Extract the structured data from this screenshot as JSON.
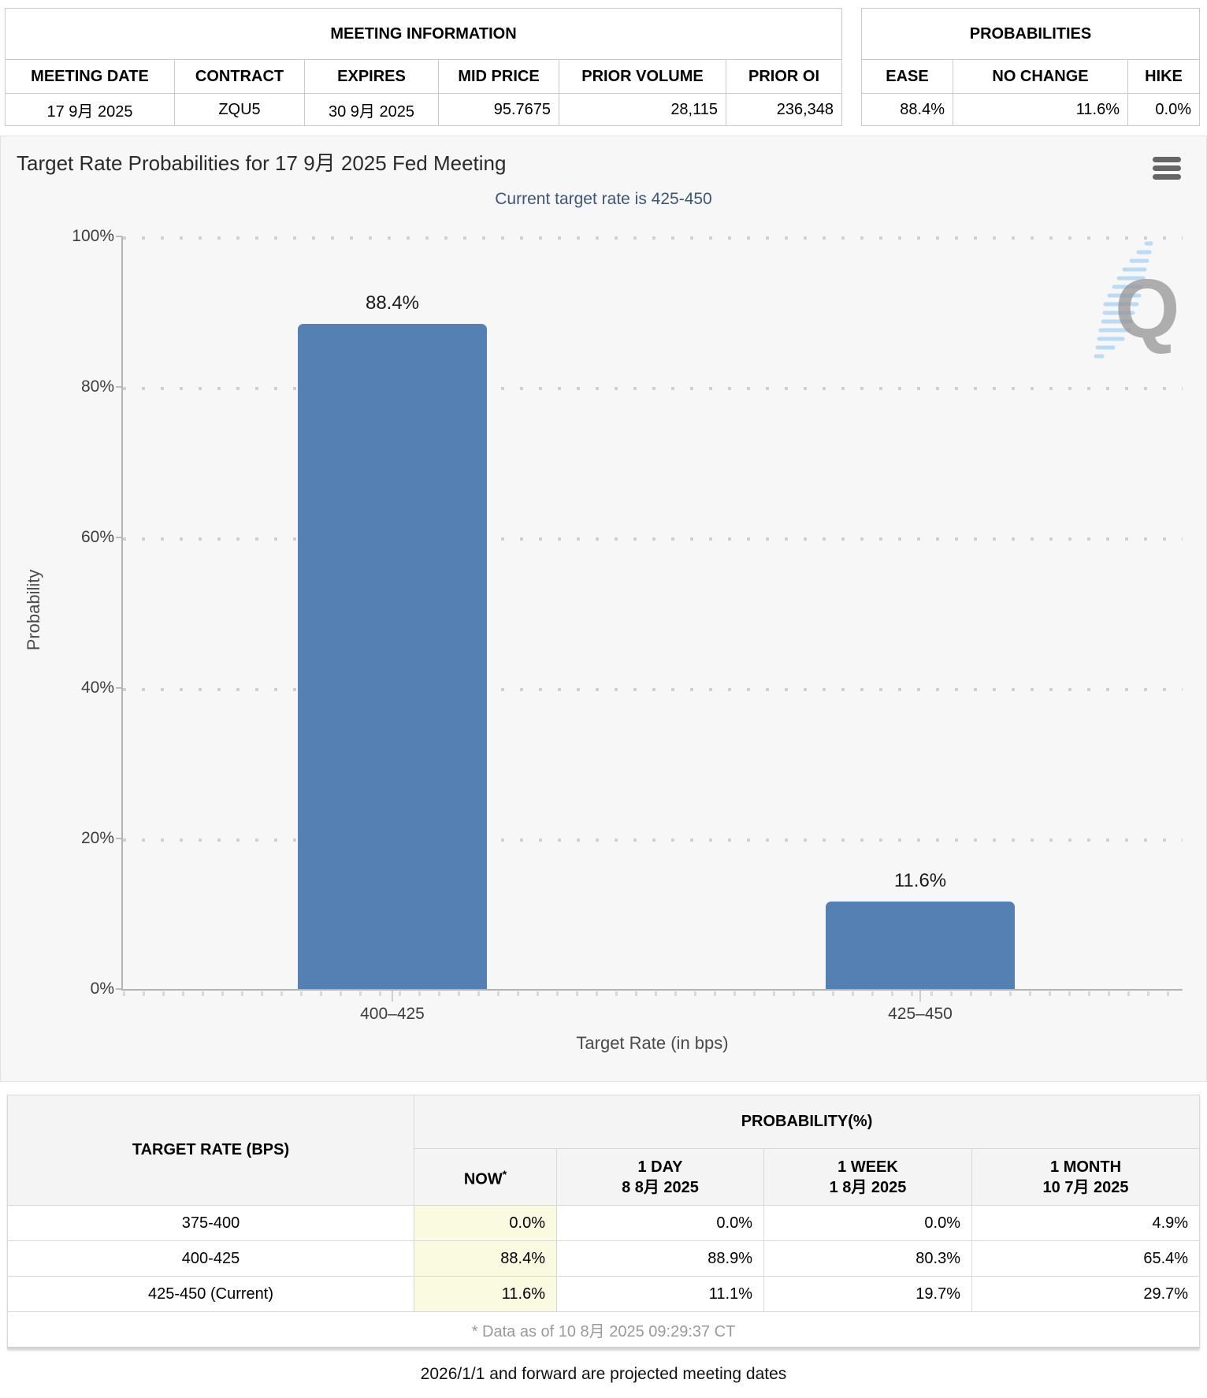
{
  "meeting_information": {
    "title": "MEETING INFORMATION",
    "columns": [
      "MEETING DATE",
      "CONTRACT",
      "EXPIRES",
      "MID PRICE",
      "PRIOR VOLUME",
      "PRIOR OI"
    ],
    "values": [
      "17 9月 2025",
      "ZQU5",
      "30 9月 2025",
      "95.7675",
      "28,115",
      "236,348"
    ]
  },
  "probabilities_summary": {
    "title": "PROBABILITIES",
    "columns": [
      "EASE",
      "NO CHANGE",
      "HIKE"
    ],
    "values": [
      "88.4%",
      "11.6%",
      "0.0%"
    ]
  },
  "chart_data": {
    "type": "bar",
    "title": "Target Rate Probabilities for 17 9月 2025 Fed Meeting",
    "subtitle": "Current target rate is 425-450",
    "categories": [
      "400–425",
      "425–450"
    ],
    "values": [
      88.4,
      11.6
    ],
    "bar_labels": [
      "88.4%",
      "11.6%"
    ],
    "xlabel": "Target Rate (in bps)",
    "ylabel": "Probability",
    "ylim": [
      0,
      100
    ],
    "ytick_labels": [
      "100%",
      "80%",
      "60%",
      "40%",
      "20%",
      "0%"
    ],
    "grid": "dotted horizontal, on",
    "legend": "none",
    "bar_color": "#5480b4",
    "background_color": "#f7f7f7",
    "watermark": "Q"
  },
  "probability_table": {
    "col1_header": "TARGET RATE (BPS)",
    "group_header": "PROBABILITY(%)",
    "now_header": {
      "label": "NOW",
      "asterisk": "*"
    },
    "period_headers": [
      {
        "line1": "1 DAY",
        "line2": "8 8月 2025"
      },
      {
        "line1": "1 WEEK",
        "line2": "1 8月 2025"
      },
      {
        "line1": "1 MONTH",
        "line2": "10 7月 2025"
      }
    ],
    "rows": [
      {
        "rate": "375-400",
        "values": [
          "0.0%",
          "0.0%",
          "0.0%",
          "4.9%"
        ]
      },
      {
        "rate": "400-425",
        "values": [
          "88.4%",
          "88.9%",
          "80.3%",
          "65.4%"
        ]
      },
      {
        "rate": "425-450 (Current)",
        "values": [
          "11.6%",
          "11.1%",
          "19.7%",
          "29.7%"
        ]
      }
    ],
    "footnote": "* Data as of 10 8月 2025 09:29:37 CT"
  },
  "footer_note": "2026/1/1 and forward are projected meeting dates"
}
